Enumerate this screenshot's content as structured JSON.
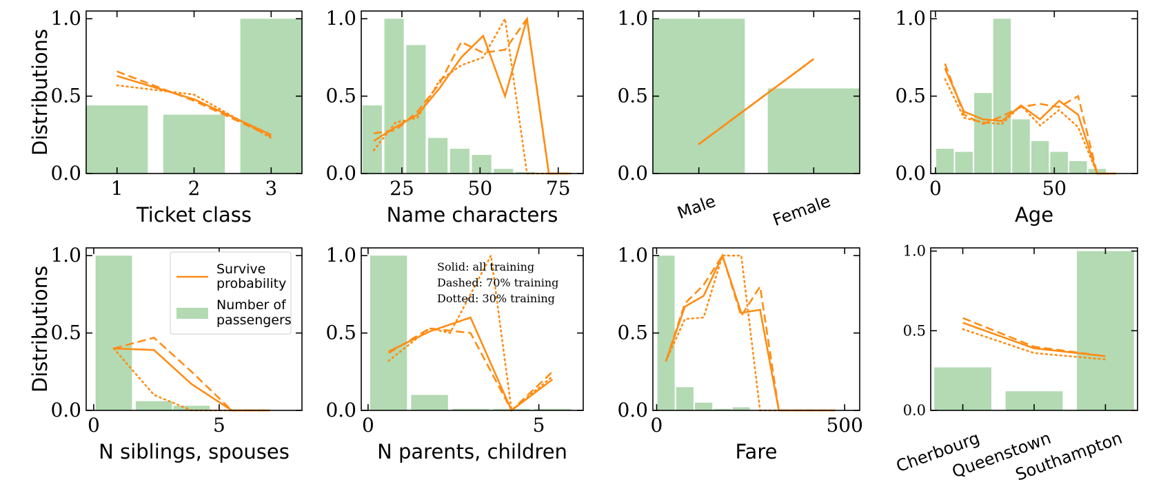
{
  "colors": {
    "bar": "#b3dab3",
    "line": "#ff8c14"
  },
  "legend": {
    "line_label": [
      "Survive",
      "probability"
    ],
    "bar_label": [
      "Number of",
      "passengers"
    ]
  },
  "annotation": [
    "Solid: all training",
    "Dashed: 70% training",
    "Dotted: 30% training"
  ],
  "chart_data": [
    {
      "type": "bar+line",
      "xlabel": "Ticket class",
      "ylabel": "Distributions",
      "xlim": [
        0.6,
        3.4
      ],
      "ylim": [
        0,
        1.05
      ],
      "xticks": [
        1,
        2,
        3
      ],
      "yticks": [
        0.0,
        0.5,
        1.0
      ],
      "bar_width": 0.8,
      "bars": {
        "x": [
          1,
          2,
          3
        ],
        "values": [
          0.44,
          0.38,
          1.0
        ]
      },
      "series": [
        {
          "style": "solid",
          "x": [
            1,
            2,
            3
          ],
          "values": [
            0.63,
            0.48,
            0.25
          ]
        },
        {
          "style": "dashed",
          "x": [
            1,
            2,
            3
          ],
          "values": [
            0.66,
            0.47,
            0.24
          ]
        },
        {
          "style": "dotted",
          "x": [
            1,
            2,
            3
          ],
          "values": [
            0.57,
            0.51,
            0.23
          ]
        }
      ]
    },
    {
      "type": "bar+line",
      "xlabel": "Name characters",
      "ylabel": "",
      "xlim": [
        12,
        83
      ],
      "ylim": [
        0,
        1.05
      ],
      "xticks": [
        25,
        50,
        75
      ],
      "yticks": [
        0.0,
        0.5,
        1.0
      ],
      "bar_width": 6.2,
      "bars": {
        "x": [
          15.5,
          22.5,
          29.5,
          36.5,
          43.5,
          50.5,
          57.5,
          64.5
        ],
        "values": [
          0.44,
          1.0,
          0.83,
          0.23,
          0.16,
          0.12,
          0.03,
          0.01
        ]
      },
      "series": [
        {
          "style": "solid",
          "x": [
            16,
            23,
            30,
            37,
            44,
            51,
            58,
            65,
            72,
            79
          ],
          "values": [
            0.21,
            0.3,
            0.38,
            0.55,
            0.75,
            0.89,
            0.5,
            1.0,
            0.0,
            0.0
          ]
        },
        {
          "style": "dashed",
          "x": [
            16,
            23,
            30,
            37,
            44,
            51,
            58,
            65,
            72,
            79
          ],
          "values": [
            0.26,
            0.28,
            0.4,
            0.58,
            0.85,
            0.78,
            0.8,
            1.0,
            0.0,
            0.0
          ]
        },
        {
          "style": "dotted",
          "x": [
            16,
            23,
            30,
            37,
            44,
            51,
            58,
            65,
            72,
            79
          ],
          "values": [
            0.15,
            0.33,
            0.36,
            0.6,
            0.7,
            0.75,
            1.0,
            0.0,
            0.0,
            0.0
          ]
        }
      ]
    },
    {
      "type": "bar+line",
      "xlabel": "",
      "ylabel": "",
      "xlim": [
        -0.4,
        1.4
      ],
      "ylim": [
        0,
        1.05
      ],
      "categories": [
        "Male",
        "Female"
      ],
      "yticks": [
        0.0,
        0.5,
        1.0
      ],
      "bar_width": 0.8,
      "bars": {
        "x": [
          0,
          1
        ],
        "values": [
          1.0,
          0.55
        ]
      },
      "series": [
        {
          "style": "solid",
          "x": [
            0,
            1
          ],
          "values": [
            0.19,
            0.74
          ]
        },
        {
          "style": "dashed",
          "x": [
            0,
            1
          ],
          "values": [
            0.19,
            0.74
          ]
        },
        {
          "style": "dotted",
          "x": [
            0,
            1
          ],
          "values": [
            0.19,
            0.74
          ]
        }
      ]
    },
    {
      "type": "bar+line",
      "xlabel": "Age",
      "ylabel": "",
      "xlim": [
        -2,
        85
      ],
      "ylim": [
        0,
        1.05
      ],
      "xticks": [
        0,
        50
      ],
      "yticks": [
        0.0,
        0.5,
        1.0
      ],
      "bar_width": 7.4,
      "bars": {
        "x": [
          4,
          12,
          20,
          28,
          36,
          44,
          52,
          60,
          68
        ],
        "values": [
          0.16,
          0.14,
          0.52,
          1.0,
          0.35,
          0.21,
          0.14,
          0.08,
          0.03
        ]
      },
      "series": [
        {
          "style": "solid",
          "x": [
            4,
            12,
            20,
            28,
            36,
            44,
            52,
            60,
            68,
            76
          ],
          "values": [
            0.68,
            0.4,
            0.35,
            0.34,
            0.44,
            0.35,
            0.47,
            0.38,
            0.0,
            0.0
          ]
        },
        {
          "style": "dashed",
          "x": [
            4,
            12,
            20,
            28,
            36,
            44,
            52,
            60,
            68,
            76
          ],
          "values": [
            0.71,
            0.38,
            0.32,
            0.37,
            0.43,
            0.45,
            0.43,
            0.5,
            0.0,
            0.0
          ]
        },
        {
          "style": "dotted",
          "x": [
            4,
            12,
            20,
            28,
            36,
            44,
            52,
            60,
            68,
            76
          ],
          "values": [
            0.61,
            0.36,
            0.33,
            0.32,
            0.44,
            0.31,
            0.41,
            0.3,
            0.0,
            0.0
          ]
        }
      ]
    },
    {
      "type": "bar+line",
      "xlabel": "N siblings, spouses",
      "ylabel": "Distributions",
      "xlim": [
        -0.3,
        8.3
      ],
      "ylim": [
        0,
        1.05
      ],
      "xticks": [
        0,
        5
      ],
      "yticks": [
        0.0,
        0.5,
        1.0
      ],
      "bar_width": 1.45,
      "bars": {
        "x": [
          0.8,
          2.4,
          3.9,
          5.4,
          7.0
        ],
        "values": [
          1.0,
          0.06,
          0.03,
          0.0,
          0.0
        ]
      },
      "series": [
        {
          "style": "solid",
          "x": [
            0.8,
            2.4,
            3.9,
            5.5,
            7.0
          ],
          "values": [
            0.4,
            0.39,
            0.17,
            0.0,
            0.0
          ]
        },
        {
          "style": "dashed",
          "x": [
            0.8,
            2.4,
            3.9,
            5.5,
            7.0
          ],
          "values": [
            0.4,
            0.47,
            0.25,
            0.0,
            0.0
          ]
        },
        {
          "style": "dotted",
          "x": [
            0.8,
            2.4,
            3.9,
            5.5,
            7.0
          ],
          "values": [
            0.4,
            0.1,
            0.0,
            0.0,
            0.0
          ]
        }
      ]
    },
    {
      "type": "bar+line",
      "xlabel": "N parents, children",
      "ylabel": "",
      "xlim": [
        -0.2,
        6.3
      ],
      "ylim": [
        0,
        1.05
      ],
      "xticks": [
        0,
        5
      ],
      "yticks": [
        0.0,
        0.5,
        1.0
      ],
      "bar_width": 1.08,
      "bars": {
        "x": [
          0.6,
          1.8,
          3.0,
          4.2,
          5.4
        ],
        "values": [
          1.0,
          0.1,
          0.01,
          0.01,
          0.01
        ]
      },
      "series": [
        {
          "style": "solid",
          "x": [
            0.6,
            1.8,
            3.0,
            4.2,
            5.4
          ],
          "values": [
            0.38,
            0.51,
            0.6,
            0.0,
            0.2
          ]
        },
        {
          "style": "dashed",
          "x": [
            0.6,
            1.8,
            3.0,
            4.2,
            5.4
          ],
          "values": [
            0.37,
            0.53,
            0.5,
            0.0,
            0.25
          ]
        },
        {
          "style": "dotted",
          "x": [
            0.6,
            1.8,
            2.4,
            3.6,
            4.2,
            5.4
          ],
          "values": [
            0.32,
            0.53,
            0.5,
            1.0,
            0.0,
            0.22
          ]
        }
      ]
    },
    {
      "type": "bar+line",
      "xlabel": "Fare",
      "ylabel": "",
      "xlim": [
        -10,
        540
      ],
      "ylim": [
        0,
        1.05
      ],
      "xticks": [
        0,
        500
      ],
      "yticks": [
        0.0,
        0.5,
        1.0
      ],
      "bar_width": 46,
      "bars": {
        "x": [
          25,
          75,
          125,
          175,
          225
        ],
        "values": [
          1.0,
          0.15,
          0.05,
          0.01,
          0.02
        ]
      },
      "series": [
        {
          "style": "solid",
          "x": [
            25,
            75,
            125,
            175,
            225,
            275,
            325,
            375,
            425,
            475
          ],
          "values": [
            0.32,
            0.67,
            0.74,
            1.0,
            0.63,
            0.65,
            0.0,
            0.0,
            0.0,
            0.0
          ]
        },
        {
          "style": "dashed",
          "x": [
            25,
            75,
            125,
            175,
            225,
            275,
            325,
            375,
            425,
            475
          ],
          "values": [
            0.32,
            0.69,
            0.81,
            1.0,
            0.61,
            0.8,
            0.0,
            0.0,
            0.0,
            0.0
          ]
        },
        {
          "style": "dotted",
          "x": [
            25,
            75,
            125,
            175,
            225,
            275,
            325
          ],
          "values": [
            0.32,
            0.59,
            0.6,
            1.0,
            1.0,
            0.0,
            0.0
          ]
        }
      ]
    },
    {
      "type": "bar+line",
      "xlabel": "",
      "ylabel": "",
      "xlim": [
        -0.45,
        2.45
      ],
      "ylim": [
        0,
        1.02
      ],
      "categories": [
        "Cherbourg",
        "Queenstown",
        "Southampton"
      ],
      "yticks": [
        0.0,
        0.5,
        1.0
      ],
      "bar_width": 0.8,
      "bars": {
        "x": [
          0,
          1,
          2
        ],
        "values": [
          0.27,
          0.12,
          1.0
        ]
      },
      "series": [
        {
          "style": "solid",
          "x": [
            0,
            1,
            2
          ],
          "values": [
            0.55,
            0.39,
            0.34
          ]
        },
        {
          "style": "dashed",
          "x": [
            0,
            1,
            2
          ],
          "values": [
            0.58,
            0.4,
            0.34
          ]
        },
        {
          "style": "dotted",
          "x": [
            0,
            1,
            2
          ],
          "values": [
            0.51,
            0.36,
            0.32
          ]
        }
      ]
    }
  ]
}
